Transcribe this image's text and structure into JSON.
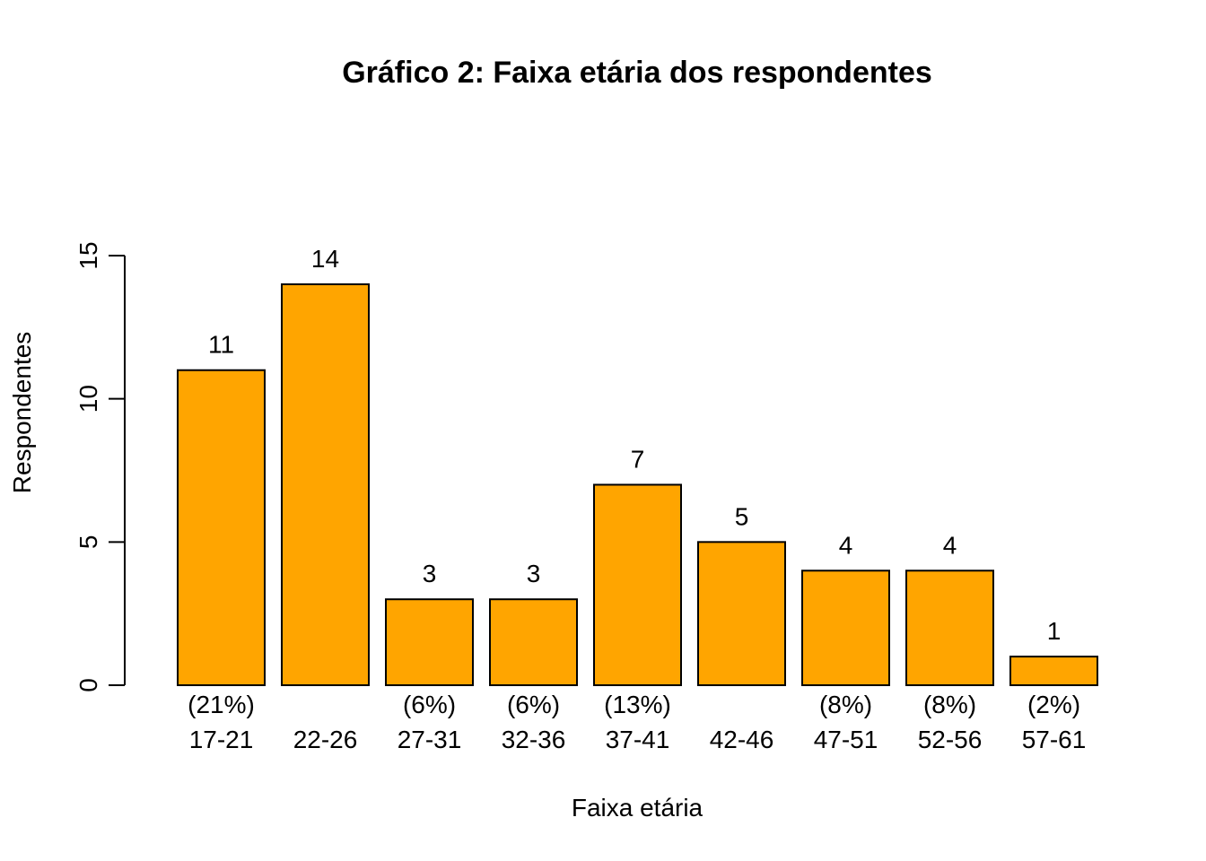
{
  "chart_data": {
    "type": "bar",
    "title": "Gráfico 2: Faixa etária dos respondentes",
    "xlabel": "Faixa etária",
    "ylabel": "Respondentes",
    "categories": [
      "17-21",
      "22-26",
      "27-31",
      "32-36",
      "37-41",
      "42-46",
      "47-51",
      "52-56",
      "57-61"
    ],
    "values": [
      11,
      14,
      3,
      3,
      7,
      5,
      4,
      4,
      1
    ],
    "value_labels": [
      "11",
      "14",
      "3",
      "3",
      "7",
      "5",
      "4",
      "4",
      "1"
    ],
    "percent_labels": [
      "(21%)",
      "",
      "(6%)",
      "(6%)",
      "(13%)",
      "",
      "(8%)",
      "(8%)",
      "(2%)"
    ],
    "ylim": [
      0,
      15
    ],
    "yticks": [
      0,
      5,
      10,
      15
    ],
    "ytick_labels": [
      "0",
      "5",
      "10",
      "15"
    ],
    "bar_color": "#FFA500",
    "grid": false,
    "legend": "none"
  }
}
